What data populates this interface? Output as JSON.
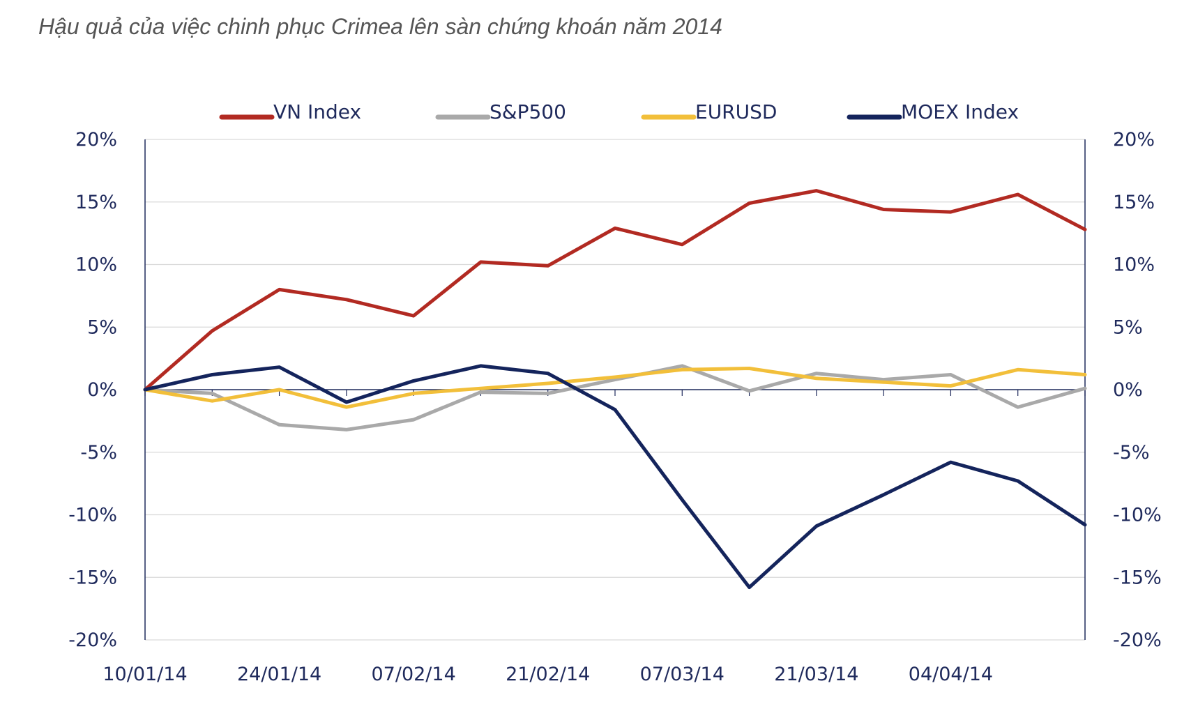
{
  "caption": "Hậu quả của việc chinh phục Crimea lên sàn chứng khoán năm 2014",
  "chart_data": {
    "type": "line",
    "title": "Hậu quả của việc chinh phục Crimea lên sàn chứng khoán năm 2014",
    "xlabel": "",
    "ylabel": "",
    "ylim": [
      -20,
      20
    ],
    "yticks": [
      20,
      15,
      10,
      5,
      0,
      -5,
      -10,
      -15,
      -20
    ],
    "ytick_labels": [
      "20%",
      "15%",
      "10%",
      "5%",
      "0%",
      "-5%",
      "-10%",
      "-15%",
      "-20%"
    ],
    "x": [
      "10/01/14",
      "17/01/14",
      "24/01/14",
      "31/01/14",
      "07/02/14",
      "14/02/14",
      "21/02/14",
      "28/02/14",
      "07/03/14",
      "14/03/14",
      "21/03/14",
      "28/03/14",
      "04/04/14",
      "11/04/14",
      "14/04/14"
    ],
    "xtick_labels": [
      "10/01/14",
      "24/01/14",
      "07/02/14",
      "21/02/14",
      "07/03/14",
      "21/03/14",
      "04/04/14"
    ],
    "legend_position": "top",
    "grid": true,
    "series": [
      {
        "name": "VN Index",
        "color": "#b22a22",
        "values": [
          0,
          4.7,
          8.0,
          7.2,
          5.9,
          10.2,
          9.9,
          12.9,
          11.6,
          14.9,
          15.9,
          14.4,
          14.2,
          15.6,
          12.8
        ]
      },
      {
        "name": "S&P500",
        "color": "#a9a9a9",
        "values": [
          0,
          -0.3,
          -2.8,
          -3.2,
          -2.4,
          -0.2,
          -0.3,
          0.8,
          1.9,
          -0.1,
          1.3,
          0.8,
          1.2,
          -1.4,
          0.1
        ]
      },
      {
        "name": "EURUSD",
        "color": "#f2bf3a",
        "values": [
          0,
          -0.9,
          0.0,
          -1.4,
          -0.3,
          0.1,
          0.5,
          1.0,
          1.6,
          1.7,
          0.9,
          0.6,
          0.3,
          1.6,
          1.2
        ]
      },
      {
        "name": "MOEX Index",
        "color": "#14245c",
        "values": [
          0,
          1.2,
          1.8,
          -1.0,
          0.7,
          1.9,
          1.3,
          -1.6,
          -8.8,
          -15.8,
          -10.9,
          -8.4,
          -5.8,
          -7.3,
          -10.8
        ]
      }
    ]
  }
}
